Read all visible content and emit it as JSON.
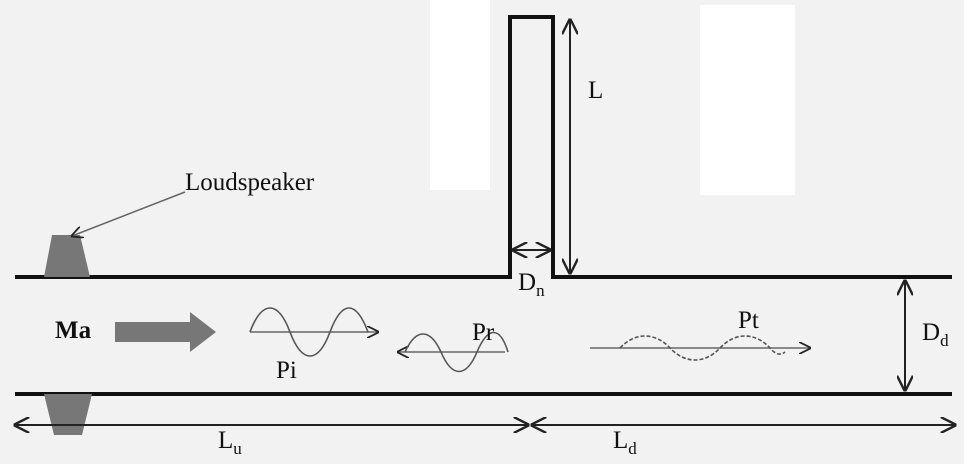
{
  "labels": {
    "loudspeaker": "Loudspeaker",
    "neck_length": "L",
    "neck_diameter": {
      "symbol": "D",
      "subscript": "n"
    },
    "mach": "Ma",
    "incident": "Pi",
    "reflected": "Pr",
    "transmitted": "Pt",
    "duct_diameter": {
      "symbol": "D",
      "subscript": "d"
    },
    "upstream_length": {
      "symbol": "L",
      "subscript": "u"
    },
    "downstream_length": {
      "symbol": "L",
      "subscript": "d"
    }
  }
}
